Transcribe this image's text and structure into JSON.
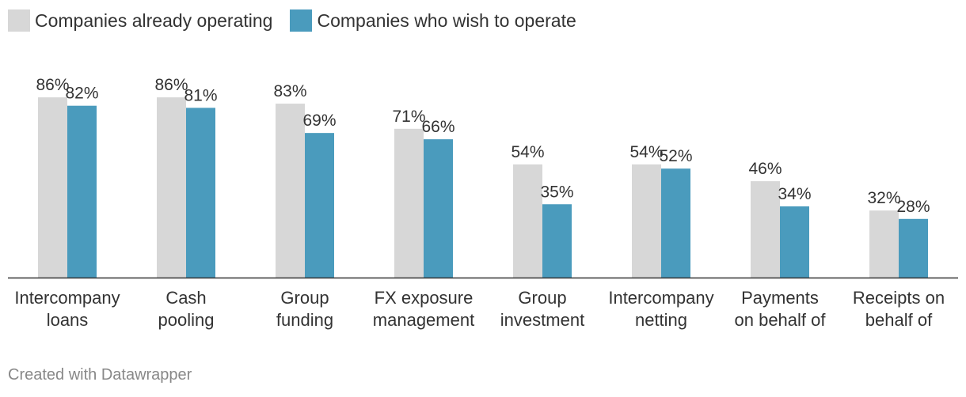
{
  "chart_data": {
    "type": "bar",
    "categories": [
      [
        "Intercompany",
        "loans"
      ],
      [
        "Cash",
        "pooling"
      ],
      [
        "Group",
        "funding"
      ],
      [
        "FX exposure",
        "management"
      ],
      [
        "Group",
        "investment"
      ],
      [
        "Intercompany",
        "netting"
      ],
      [
        "Payments",
        "on behalf of"
      ],
      [
        "Receipts on",
        "behalf of"
      ]
    ],
    "series": [
      {
        "name": "Companies already operating",
        "color": "#d7d7d7",
        "values": [
          86,
          86,
          83,
          71,
          54,
          54,
          46,
          32
        ]
      },
      {
        "name": "Companies who wish to operate",
        "color": "#4a9bbd",
        "values": [
          82,
          81,
          69,
          66,
          35,
          52,
          34,
          28
        ]
      }
    ],
    "value_suffix": "%",
    "ylim": [
      0,
      100
    ],
    "grid": false,
    "legend_position": "top-left"
  },
  "footer": {
    "credit": "Created with Datawrapper"
  }
}
